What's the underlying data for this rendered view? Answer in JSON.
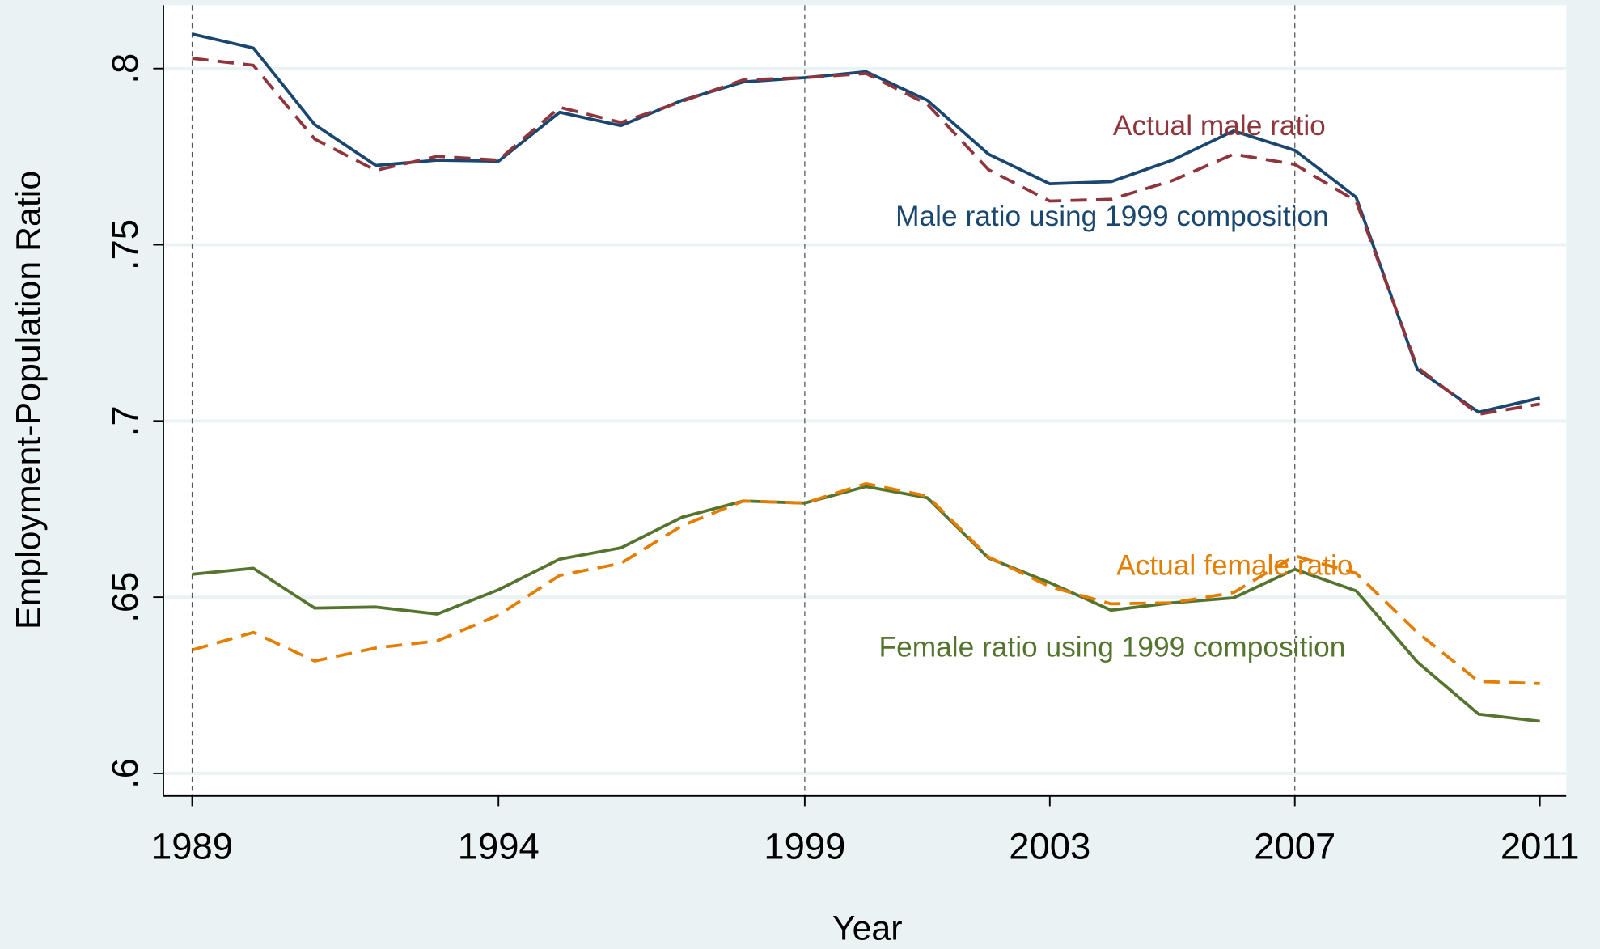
{
  "chart_data": {
    "type": "line",
    "x_label": "Year",
    "y_label": "Employment-Population Ratio",
    "x": [
      1989,
      1990,
      1991,
      1992,
      1993,
      1994,
      1995,
      1996,
      1997,
      1998,
      1999,
      2000,
      2001,
      2002,
      2003,
      2004,
      2005,
      2006,
      2007,
      2008,
      2009,
      2010,
      2011
    ],
    "series": [
      {
        "name": "Male ratio using 1999 composition",
        "color": "#1a476f",
        "dashed": false,
        "values": [
          0.8098,
          0.8058,
          0.7841,
          0.7725,
          0.774,
          0.7737,
          0.7876,
          0.7838,
          0.791,
          0.7962,
          0.7974,
          0.7991,
          0.791,
          0.7757,
          0.7673,
          0.7679,
          0.774,
          0.7823,
          0.7768,
          0.7635,
          0.7146,
          0.7025,
          0.7065
        ]
      },
      {
        "name": "Actual male ratio",
        "color": "#90353b",
        "dashed": true,
        "values": [
          0.8029,
          0.8009,
          0.78,
          0.7711,
          0.7751,
          0.774,
          0.789,
          0.7847,
          0.7907,
          0.7968,
          0.7974,
          0.7986,
          0.7899,
          0.7713,
          0.7624,
          0.7629,
          0.7682,
          0.7757,
          0.7728,
          0.7624,
          0.7152,
          0.7019,
          0.7048
        ]
      },
      {
        "name": "Female ratio using 1999 composition",
        "color": "#55752f",
        "dashed": false,
        "values": [
          0.6565,
          0.6582,
          0.6469,
          0.6472,
          0.6452,
          0.6521,
          0.6608,
          0.664,
          0.6727,
          0.6773,
          0.6767,
          0.6814,
          0.6782,
          0.6611,
          0.6541,
          0.6463,
          0.6484,
          0.6498,
          0.6579,
          0.6518,
          0.6316,
          0.6168,
          0.6148
        ]
      },
      {
        "name": "Actual female ratio",
        "color": "#e37e00",
        "dashed": true,
        "values": [
          0.635,
          0.64,
          0.6319,
          0.6356,
          0.6376,
          0.6449,
          0.6562,
          0.6596,
          0.6703,
          0.6773,
          0.6767,
          0.6822,
          0.6787,
          0.6614,
          0.653,
          0.6481,
          0.6484,
          0.6513,
          0.6617,
          0.6568,
          0.64,
          0.6261,
          0.6255
        ]
      }
    ],
    "xlim": [
      1988.53,
      2011.43
    ],
    "xticks": [
      1989,
      1994,
      1999,
      2003,
      2007,
      2011
    ],
    "ylim": [
      0.5936,
      0.818
    ],
    "yticks": [
      {
        "value": 0.6,
        "label": ".6"
      },
      {
        "value": 0.65,
        "label": ".65"
      },
      {
        "value": 0.7,
        "label": ".7"
      },
      {
        "value": 0.75,
        "label": ".75"
      },
      {
        "value": 0.8,
        "label": ".8"
      }
    ],
    "grid": true,
    "vlines": [
      1989,
      1999,
      2007
    ]
  }
}
